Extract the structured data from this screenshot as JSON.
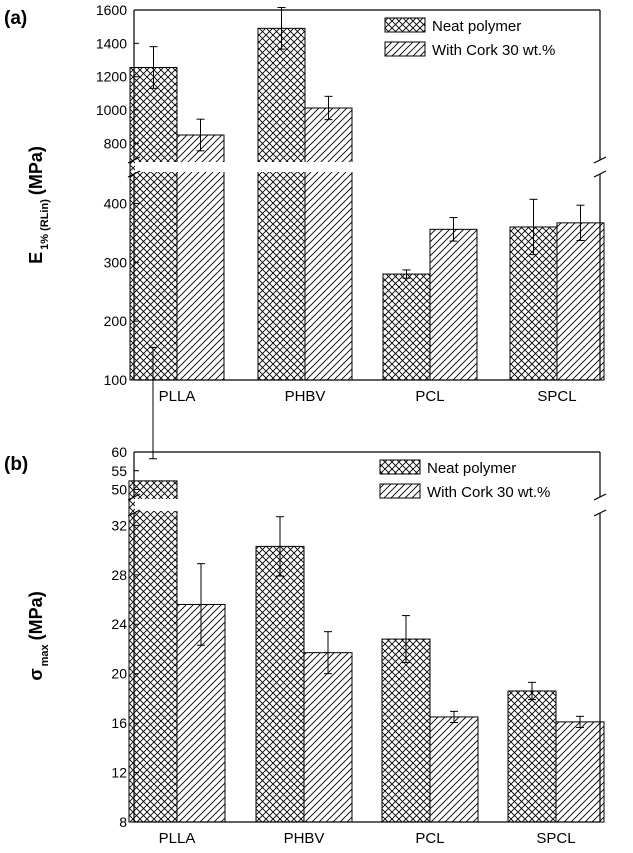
{
  "chart_data": [
    {
      "panel_label": "(a)",
      "type": "bar",
      "categories": [
        "PLLA",
        "PHBV",
        "PCL",
        "SPCL"
      ],
      "series": [
        {
          "name": "Neat polymer",
          "pattern": "crosshatch",
          "values": [
            1255,
            1490,
            280,
            360
          ],
          "errors": [
            125,
            125,
            7,
            47
          ]
        },
        {
          "name": "With Cork 30 wt.%",
          "pattern": "diagonal",
          "values": [
            850,
            1012,
            356,
            367
          ],
          "errors": [
            95,
            70,
            20,
            30
          ]
        }
      ],
      "ylabel_main": "E",
      "ylabel_sub": "1% (RLin)",
      "ylabel_unit": "(MPa)",
      "broken_axis": true,
      "lower_range": [
        100,
        450
      ],
      "upper_range": [
        700,
        1600
      ],
      "lower_ticks": [
        100,
        200,
        300,
        400
      ],
      "upper_ticks": [
        800,
        1000,
        1200,
        1400,
        1600
      ],
      "legend_position": "top-right",
      "grid": false
    },
    {
      "panel_label": "(b)",
      "type": "bar",
      "categories": [
        "PLLA",
        "PHBV",
        "PCL",
        "SPCL"
      ],
      "series": [
        {
          "name": "Neat polymer",
          "pattern": "crosshatch",
          "values": [
            52.3,
            30.3,
            22.8,
            18.6
          ],
          "errors": [
            5.9,
            2.4,
            1.9,
            0.7
          ]
        },
        {
          "name": "With Cork 30 wt.%",
          "pattern": "diagonal",
          "values": [
            25.6,
            21.7,
            16.5,
            16.1
          ],
          "errors": [
            3.3,
            1.7,
            0.45,
            0.45
          ]
        }
      ],
      "ylabel_main": "σ",
      "ylabel_sub": "max",
      "ylabel_unit": "(MPa)",
      "broken_axis": true,
      "lower_range": [
        8,
        33
      ],
      "upper_range": [
        48,
        60
      ],
      "lower_ticks": [
        8,
        12,
        16,
        20,
        24,
        28,
        32
      ],
      "upper_ticks": [
        50,
        55,
        60
      ],
      "legend_position": "top-right",
      "grid": false
    }
  ]
}
